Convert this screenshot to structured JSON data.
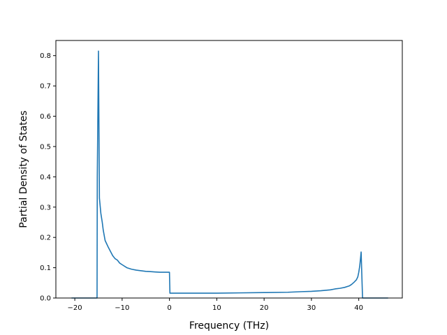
{
  "chart_data": {
    "type": "line",
    "title": "",
    "xlabel": "Frequency (THz)",
    "ylabel": "Partial Density of States",
    "xlim": [
      -24.0,
      49.2
    ],
    "ylim": [
      0.0,
      0.85
    ],
    "xticks": [
      -20,
      -10,
      0,
      10,
      20,
      30,
      40
    ],
    "xtick_labels": [
      "−20",
      "−10",
      "0",
      "10",
      "20",
      "30",
      "40"
    ],
    "yticks": [
      0.0,
      0.1,
      0.2,
      0.3,
      0.4,
      0.5,
      0.6,
      0.7,
      0.8
    ],
    "ytick_labels": [
      "0.0",
      "0.1",
      "0.2",
      "0.3",
      "0.4",
      "0.5",
      "0.6",
      "0.7",
      "0.8"
    ],
    "grid": false,
    "legend": false,
    "color": "#1f77b4",
    "series": [
      {
        "x": [
          -20.7,
          -15.3,
          -15.25,
          -15.0,
          -14.8,
          -14.5,
          -14.2,
          -14.0,
          -13.6,
          -13.3,
          -13.0,
          -12.5,
          -12.0,
          -11.5,
          -11.0,
          -10.5,
          -10.0,
          -9.0,
          -8.0,
          -7.0,
          -6.0,
          -5.0,
          -4.0,
          -3.0,
          -2.0,
          -1.0,
          -0.2,
          0.0,
          0.1,
          5.0,
          10.0,
          15.0,
          20.0,
          25.0,
          28.0,
          30.0,
          32.0,
          34.0,
          35.0,
          36.0,
          37.0,
          38.0,
          38.5,
          39.0,
          39.5,
          39.8,
          40.0,
          40.2,
          40.4,
          40.5,
          40.6,
          40.8,
          46.2
        ],
        "y": [
          0.0,
          0.0,
          0.4,
          0.815,
          0.33,
          0.28,
          0.25,
          0.225,
          0.19,
          0.18,
          0.17,
          0.155,
          0.14,
          0.13,
          0.125,
          0.115,
          0.11,
          0.1,
          0.095,
          0.092,
          0.09,
          0.088,
          0.087,
          0.086,
          0.085,
          0.085,
          0.085,
          0.085,
          0.016,
          0.016,
          0.016,
          0.017,
          0.018,
          0.019,
          0.021,
          0.022,
          0.024,
          0.027,
          0.03,
          0.032,
          0.035,
          0.04,
          0.045,
          0.052,
          0.06,
          0.07,
          0.085,
          0.105,
          0.135,
          0.152,
          0.1,
          0.0,
          0.0
        ]
      }
    ]
  }
}
